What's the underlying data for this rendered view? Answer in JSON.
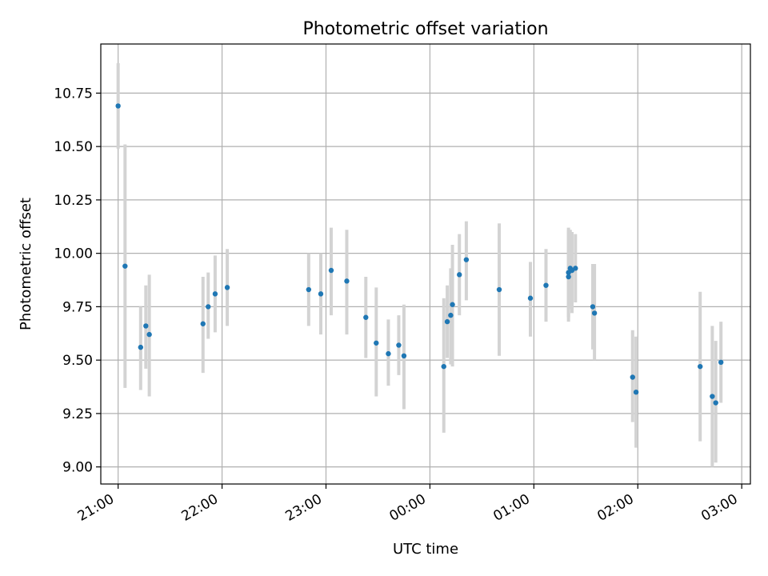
{
  "chart_data": {
    "type": "scatter",
    "title": "Photometric offset variation",
    "xlabel": "UTC time",
    "ylabel": "Photometric offset",
    "grid": true,
    "x_ticks": [
      "21:00",
      "22:00",
      "23:00",
      "00:00",
      "01:00",
      "02:00",
      "03:00"
    ],
    "y_ticks": [
      "9.00",
      "9.25",
      "9.50",
      "9.75",
      "10.00",
      "10.25",
      "10.50",
      "10.75"
    ],
    "xlim": [
      "20:50",
      "03:05"
    ],
    "ylim": [
      8.92,
      10.98
    ],
    "series": [
      {
        "color": "#1f77b4",
        "errorbar_color": "#d3d3d3",
        "points": [
          {
            "x": "21:00",
            "y": 10.69,
            "ylow": 10.49,
            "yhigh": 10.89
          },
          {
            "x": "21:04",
            "y": 9.94,
            "ylow": 9.37,
            "yhigh": 10.51
          },
          {
            "x": "21:13",
            "y": 9.56,
            "ylow": 9.36,
            "yhigh": 9.75
          },
          {
            "x": "21:16",
            "y": 9.66,
            "ylow": 9.46,
            "yhigh": 9.85
          },
          {
            "x": "21:18",
            "y": 9.62,
            "ylow": 9.33,
            "yhigh": 9.9
          },
          {
            "x": "21:49",
            "y": 9.67,
            "ylow": 9.44,
            "yhigh": 9.89
          },
          {
            "x": "21:52",
            "y": 9.75,
            "ylow": 9.6,
            "yhigh": 9.91
          },
          {
            "x": "21:56",
            "y": 9.81,
            "ylow": 9.63,
            "yhigh": 9.99
          },
          {
            "x": "22:03",
            "y": 9.84,
            "ylow": 9.66,
            "yhigh": 10.02
          },
          {
            "x": "22:50",
            "y": 9.83,
            "ylow": 9.66,
            "yhigh": 10.0
          },
          {
            "x": "22:57",
            "y": 9.81,
            "ylow": 9.62,
            "yhigh": 10.0
          },
          {
            "x": "23:03",
            "y": 9.92,
            "ylow": 9.71,
            "yhigh": 10.12
          },
          {
            "x": "23:12",
            "y": 9.87,
            "ylow": 9.62,
            "yhigh": 10.11
          },
          {
            "x": "23:23",
            "y": 9.7,
            "ylow": 9.51,
            "yhigh": 9.89
          },
          {
            "x": "23:29",
            "y": 9.58,
            "ylow": 9.33,
            "yhigh": 9.84
          },
          {
            "x": "23:36",
            "y": 9.53,
            "ylow": 9.38,
            "yhigh": 9.69
          },
          {
            "x": "23:42",
            "y": 9.57,
            "ylow": 9.43,
            "yhigh": 9.71
          },
          {
            "x": "23:45",
            "y": 9.52,
            "ylow": 9.27,
            "yhigh": 9.76
          },
          {
            "x": "00:08",
            "y": 9.47,
            "ylow": 9.16,
            "yhigh": 9.79
          },
          {
            "x": "00:10",
            "y": 9.68,
            "ylow": 9.51,
            "yhigh": 9.85
          },
          {
            "x": "00:12",
            "y": 9.71,
            "ylow": 9.48,
            "yhigh": 9.93
          },
          {
            "x": "00:13",
            "y": 9.76,
            "ylow": 9.47,
            "yhigh": 10.04
          },
          {
            "x": "00:17",
            "y": 9.9,
            "ylow": 9.71,
            "yhigh": 10.09
          },
          {
            "x": "00:21",
            "y": 9.97,
            "ylow": 9.78,
            "yhigh": 10.15
          },
          {
            "x": "00:40",
            "y": 9.83,
            "ylow": 9.52,
            "yhigh": 10.14
          },
          {
            "x": "00:58",
            "y": 9.79,
            "ylow": 9.61,
            "yhigh": 9.96
          },
          {
            "x": "01:07",
            "y": 9.85,
            "ylow": 9.68,
            "yhigh": 10.02
          },
          {
            "x": "01:20",
            "y": 9.89,
            "ylow": 9.68,
            "yhigh": 10.11
          },
          {
            "x": "01:20",
            "y": 9.91,
            "ylow": 9.7,
            "yhigh": 10.12
          },
          {
            "x": "01:21",
            "y": 9.93,
            "ylow": 9.74,
            "yhigh": 10.11
          },
          {
            "x": "01:22",
            "y": 9.92,
            "ylow": 9.72,
            "yhigh": 10.1
          },
          {
            "x": "01:24",
            "y": 9.93,
            "ylow": 9.77,
            "yhigh": 10.09
          },
          {
            "x": "01:34",
            "y": 9.75,
            "ylow": 9.55,
            "yhigh": 9.95
          },
          {
            "x": "01:35",
            "y": 9.72,
            "ylow": 9.5,
            "yhigh": 9.95
          },
          {
            "x": "01:57",
            "y": 9.42,
            "ylow": 9.21,
            "yhigh": 9.64
          },
          {
            "x": "01:59",
            "y": 9.35,
            "ylow": 9.09,
            "yhigh": 9.61
          },
          {
            "x": "02:36",
            "y": 9.47,
            "ylow": 9.12,
            "yhigh": 9.82
          },
          {
            "x": "02:43",
            "y": 9.33,
            "ylow": 9.0,
            "yhigh": 9.66
          },
          {
            "x": "02:45",
            "y": 9.3,
            "ylow": 9.02,
            "yhigh": 9.59
          },
          {
            "x": "02:48",
            "y": 9.49,
            "ylow": 9.3,
            "yhigh": 9.68
          }
        ]
      }
    ]
  }
}
